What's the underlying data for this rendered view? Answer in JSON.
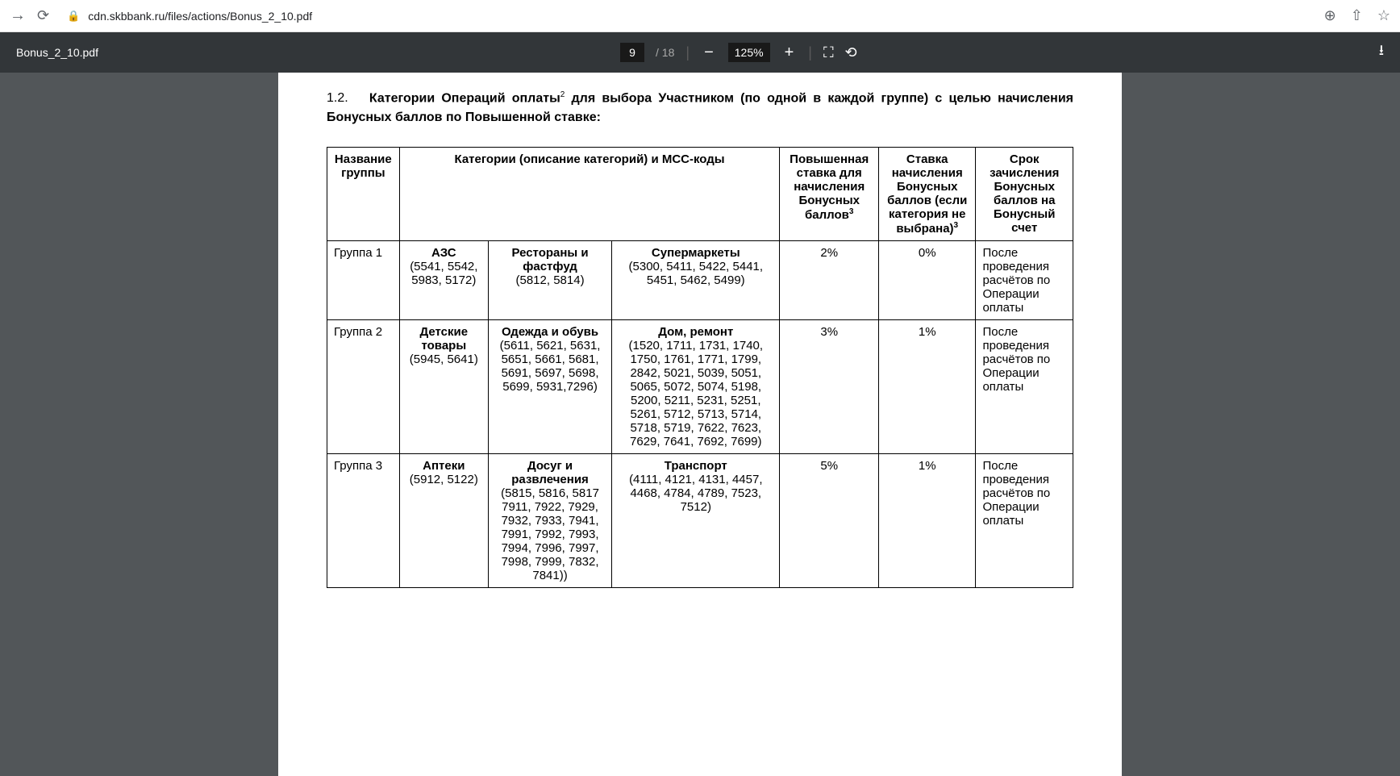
{
  "browser": {
    "url": "cdn.skbbank.ru/files/actions/Bonus_2_10.pdf"
  },
  "pdf": {
    "filename": "Bonus_2_10.pdf",
    "current_page": "9",
    "total_pages": "18",
    "zoom": "125%"
  },
  "document": {
    "heading_num": "1.2.",
    "heading_bold": "Категории Операций оплаты",
    "heading_sup": "2",
    "heading_rest": " для выбора Участником (по одной в каждой группе) с целью начисления  Бонусных баллов по Повышенной ставке:",
    "table": {
      "headers": {
        "group": "Название группы",
        "categories": "Категории (описание категорий) и МСС-коды",
        "rate_high": "Повышенная ставка для начисления Бонусных баллов",
        "rate_high_sup": "3",
        "rate_default": "Ставка начисления Бонусных баллов (если категория не выбрана)",
        "rate_default_sup": "3",
        "term": "Срок зачисления Бонусных баллов на Бонусный счет"
      },
      "rows": [
        {
          "group": "Группа 1",
          "cat1_title": "АЗС",
          "cat1_codes": "(5541, 5542, 5983, 5172)",
          "cat2_title": "Рестораны и фастфуд",
          "cat2_codes": "(5812, 5814)",
          "cat3_title": "Супермаркеты",
          "cat3_codes": "(5300, 5411, 5422, 5441, 5451, 5462, 5499)",
          "rate_high": "2%",
          "rate_default": "0%",
          "term": "После проведения расчётов по Операции оплаты"
        },
        {
          "group": "Группа 2",
          "cat1_title": "Детские товары",
          "cat1_codes": "(5945, 5641)",
          "cat2_title": "Одежда и обувь",
          "cat2_codes": "(5611, 5621, 5631, 5651, 5661, 5681, 5691, 5697, 5698, 5699, 5931,7296)",
          "cat3_title": "Дом, ремонт",
          "cat3_codes": "(1520, 1711, 1731, 1740, 1750, 1761, 1771, 1799, 2842, 5021, 5039, 5051, 5065, 5072, 5074, 5198, 5200, 5211, 5231, 5251, 5261, 5712, 5713, 5714, 5718, 5719, 7622, 7623, 7629, 7641, 7692, 7699)",
          "rate_high": "3%",
          "rate_default": "1%",
          "term": "После проведения расчётов по Операции оплаты"
        },
        {
          "group": "Группа 3",
          "cat1_title": "Аптеки",
          "cat1_codes": "(5912, 5122)",
          "cat2_title": "Досуг и развлечения",
          "cat2_codes": "(5815, 5816, 5817 7911, 7922, 7929, 7932, 7933, 7941, 7991, 7992, 7993, 7994, 7996, 7997, 7998, 7999, 7832, 7841))",
          "cat3_title": "Транспорт",
          "cat3_codes": "(4111, 4121, 4131, 4457, 4468, 4784, 4789, 7523, 7512)",
          "rate_high": "5%",
          "rate_default": "1%",
          "term": "После проведения расчётов по Операции оплаты"
        }
      ]
    }
  }
}
